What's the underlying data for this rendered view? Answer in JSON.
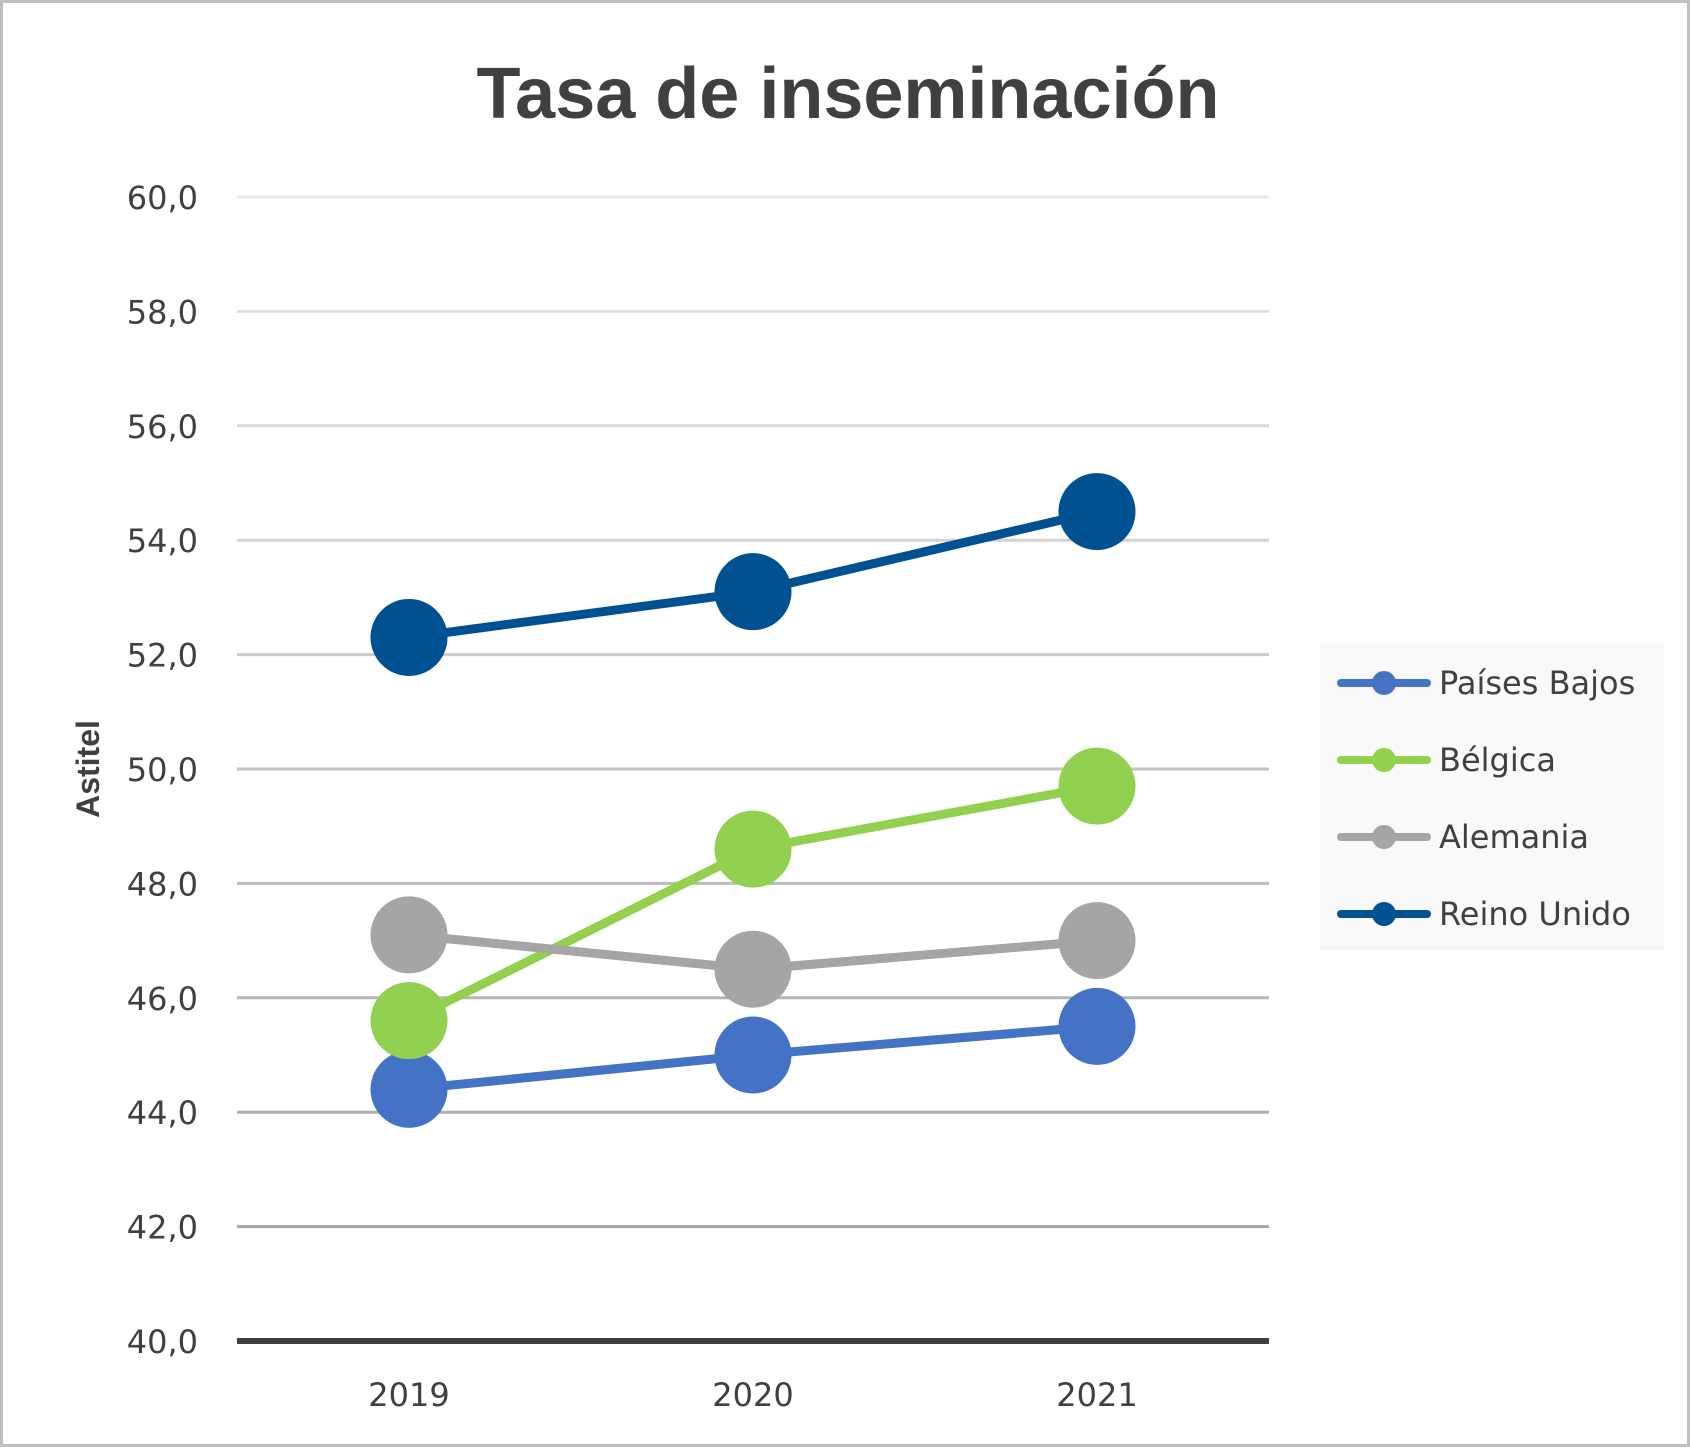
{
  "chart_data": {
    "type": "line",
    "title": "Tasa de inseminación",
    "xlabel": "",
    "ylabel": "Astitel",
    "categories": [
      "2019",
      "2020",
      "2021"
    ],
    "ylim": [
      40,
      60
    ],
    "yticks": [
      40,
      42,
      44,
      46,
      48,
      50,
      52,
      54,
      56,
      58,
      60
    ],
    "ytick_labels": [
      "40,0",
      "42,0",
      "44,0",
      "46,0",
      "48,0",
      "50,0",
      "52,0",
      "54,0",
      "56,0",
      "58,0",
      "60,0"
    ],
    "grid": true,
    "legend_position": "right",
    "series": [
      {
        "name": "Países Bajos",
        "color": "#4472c4",
        "values": [
          44.4,
          45.0,
          45.5
        ]
      },
      {
        "name": "Bélgica",
        "color": "#92d050",
        "values": [
          45.6,
          48.6,
          49.7
        ]
      },
      {
        "name": "Alemania",
        "color": "#a5a5a5",
        "values": [
          47.1,
          46.5,
          47.0
        ]
      },
      {
        "name": "Reino Unido",
        "color": "#005192",
        "values": [
          52.3,
          53.1,
          54.5
        ]
      }
    ]
  }
}
